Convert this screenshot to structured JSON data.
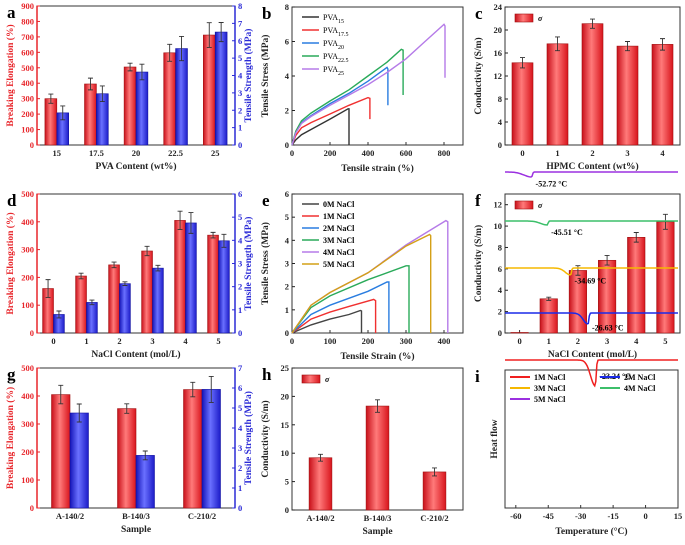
{
  "colors": {
    "red": "#e8262b",
    "blue": "#2b2bd6",
    "axis": "#333333"
  },
  "chart_data": [
    {
      "panel": "a",
      "type": "bar",
      "categories": [
        "15",
        "17.5",
        "20",
        "22.5",
        "25"
      ],
      "xlabel": "PVA Content (wt%)",
      "ylabel": "Breaking Elongation (%)",
      "ylabel_right": "Tensile Strength (MPa)",
      "ylim": [
        0,
        900
      ],
      "ylim_right": [
        0,
        8
      ],
      "yticks": [
        "0",
        "100",
        "200",
        "300",
        "400",
        "500",
        "600",
        "700",
        "800",
        "900"
      ],
      "yticks_right": [
        "0",
        "1",
        "2",
        "3",
        "4",
        "5",
        "6",
        "7",
        "8"
      ],
      "series": [
        {
          "axis": "left",
          "color": "#e8262b",
          "values": [
            300,
            395,
            505,
            597,
            712
          ],
          "errors": [
            30,
            38,
            25,
            55,
            80
          ]
        },
        {
          "axis": "right",
          "color": "#2b2bd6",
          "values": [
            1.85,
            2.95,
            4.2,
            5.55,
            6.5
          ],
          "errors": [
            0.4,
            0.45,
            0.45,
            0.7,
            0.55
          ]
        }
      ]
    },
    {
      "panel": "b",
      "type": "line",
      "xlabel": "Tensile strain (%)",
      "ylabel": "Tensile Stress (MPa)",
      "xlim": [
        0,
        900
      ],
      "ylim": [
        0,
        8
      ],
      "xticks": [
        "0",
        "200",
        "400",
        "600",
        "800"
      ],
      "yticks": [
        "0",
        "2",
        "4",
        "6",
        "8"
      ],
      "legend": "top-left",
      "series": [
        {
          "name": "PVA",
          "sub": "15",
          "color": "#333333",
          "points": [
            [
              0,
              0
            ],
            [
              20,
              0.3
            ],
            [
              50,
              0.6
            ],
            [
              100,
              0.9
            ],
            [
              200,
              1.5
            ],
            [
              295,
              2.1
            ],
            [
              300,
              2.1
            ],
            [
              300,
              0
            ]
          ]
        },
        {
          "name": "PVA",
          "sub": "17.5",
          "color": "#f03030",
          "points": [
            [
              0,
              0
            ],
            [
              20,
              0.55
            ],
            [
              50,
              1.0
            ],
            [
              100,
              1.3
            ],
            [
              200,
              1.8
            ],
            [
              300,
              2.3
            ],
            [
              400,
              2.75
            ],
            [
              410,
              2.7
            ],
            [
              410,
              1.5
            ]
          ]
        },
        {
          "name": "PVA",
          "sub": "20",
          "color": "#2a7de0",
          "points": [
            [
              0,
              0
            ],
            [
              20,
              0.75
            ],
            [
              50,
              1.3
            ],
            [
              100,
              1.7
            ],
            [
              200,
              2.4
            ],
            [
              300,
              3.0
            ],
            [
              400,
              3.7
            ],
            [
              500,
              4.5
            ],
            [
              505,
              4.4
            ],
            [
              505,
              2.3
            ]
          ]
        },
        {
          "name": "PVA",
          "sub": "22.5",
          "color": "#2aaa5a",
          "points": [
            [
              0,
              0
            ],
            [
              20,
              0.8
            ],
            [
              50,
              1.4
            ],
            [
              100,
              1.85
            ],
            [
              200,
              2.55
            ],
            [
              300,
              3.2
            ],
            [
              400,
              4.0
            ],
            [
              500,
              4.8
            ],
            [
              575,
              5.55
            ],
            [
              585,
              5.5
            ],
            [
              585,
              2.9
            ]
          ]
        },
        {
          "name": "PVA",
          "sub": "25",
          "color": "#b57be8",
          "points": [
            [
              0,
              0
            ],
            [
              20,
              0.7
            ],
            [
              50,
              1.25
            ],
            [
              100,
              1.65
            ],
            [
              200,
              2.3
            ],
            [
              300,
              2.9
            ],
            [
              400,
              3.5
            ],
            [
              500,
              4.2
            ],
            [
              600,
              5.0
            ],
            [
              700,
              6.0
            ],
            [
              800,
              7.0
            ],
            [
              805,
              6.9
            ],
            [
              805,
              3.9
            ]
          ]
        }
      ]
    },
    {
      "panel": "c",
      "type": "bar",
      "categories": [
        "0",
        "1",
        "2",
        "3",
        "4"
      ],
      "xlabel": "HPMC Content (wt%)",
      "ylabel": "Conductivity (S/m)",
      "ylim": [
        0,
        24
      ],
      "yticks": [
        "0",
        "4",
        "8",
        "12",
        "16",
        "20",
        "24"
      ],
      "legend": "top-left",
      "series": [
        {
          "name": "σ",
          "axis": "left",
          "color": "#e8262b",
          "values": [
            14.3,
            17.6,
            21.1,
            17.2,
            17.5
          ],
          "errors": [
            0.9,
            1.2,
            0.8,
            0.8,
            1.0
          ]
        }
      ]
    },
    {
      "panel": "d",
      "type": "bar",
      "categories": [
        "0",
        "1",
        "2",
        "3",
        "4",
        "5"
      ],
      "xlabel": "NaCl Content (mol/L)",
      "ylabel": "Breaking Elongation (%)",
      "ylabel_right": "Tensile Strength (MPa)",
      "ylim": [
        0,
        500
      ],
      "ylim_right": [
        0,
        6
      ],
      "yticks": [
        "0",
        "100",
        "200",
        "300",
        "400",
        "500"
      ],
      "yticks_right": [
        "0",
        "1",
        "2",
        "3",
        "4",
        "5",
        "6"
      ],
      "series": [
        {
          "axis": "left",
          "color": "#e8262b",
          "values": [
            160,
            205,
            245,
            295,
            405,
            352
          ],
          "errors": [
            32,
            10,
            10,
            17,
            33,
            10
          ]
        },
        {
          "axis": "right",
          "color": "#2b2bd6",
          "values": [
            0.8,
            1.32,
            2.13,
            2.8,
            4.75,
            3.98
          ],
          "errors": [
            0.15,
            0.1,
            0.08,
            0.12,
            0.45,
            0.28
          ]
        }
      ]
    },
    {
      "panel": "e",
      "type": "line",
      "xlabel": "Tensile Strain (%)",
      "ylabel": "Tensile Stress (MPa)",
      "xlim": [
        0,
        450
      ],
      "ylim": [
        0,
        6
      ],
      "xticks": [
        "0",
        "100",
        "200",
        "300",
        "400"
      ],
      "yticks": [
        "0",
        "1",
        "2",
        "3",
        "4",
        "5",
        "6"
      ],
      "legend": "top-left",
      "series": [
        {
          "name": "0M NaCl",
          "color": "#444444",
          "points": [
            [
              0,
              0
            ],
            [
              50,
              0.35
            ],
            [
              100,
              0.6
            ],
            [
              150,
              0.8
            ],
            [
              180,
              0.97
            ],
            [
              183,
              0.95
            ],
            [
              183,
              0
            ]
          ]
        },
        {
          "name": "1M NaCl",
          "color": "#f03030",
          "points": [
            [
              0,
              0
            ],
            [
              50,
              0.6
            ],
            [
              100,
              0.9
            ],
            [
              150,
              1.15
            ],
            [
              215,
              1.45
            ],
            [
              220,
              1.4
            ],
            [
              220,
              0
            ]
          ]
        },
        {
          "name": "2M NaCl",
          "color": "#2a7de0",
          "points": [
            [
              0,
              0
            ],
            [
              50,
              0.8
            ],
            [
              100,
              1.2
            ],
            [
              200,
              1.8
            ],
            [
              250,
              2.2
            ],
            [
              255,
              2.2
            ],
            [
              255,
              0
            ]
          ]
        },
        {
          "name": "3M NaCl",
          "color": "#2aaa5a",
          "points": [
            [
              0,
              0
            ],
            [
              50,
              1.1
            ],
            [
              100,
              1.6
            ],
            [
              200,
              2.3
            ],
            [
              300,
              2.9
            ],
            [
              308,
              2.9
            ],
            [
              308,
              0
            ]
          ]
        },
        {
          "name": "4M NaCl",
          "color": "#b57be8",
          "points": [
            [
              0,
              0
            ],
            [
              50,
              1.2
            ],
            [
              100,
              1.75
            ],
            [
              200,
              2.6
            ],
            [
              300,
              3.8
            ],
            [
              405,
              4.85
            ],
            [
              410,
              4.8
            ],
            [
              410,
              0
            ]
          ]
        },
        {
          "name": "5M NaCl",
          "color": "#d4a017",
          "points": [
            [
              0,
              0
            ],
            [
              50,
              1.2
            ],
            [
              100,
              1.75
            ],
            [
              200,
              2.6
            ],
            [
              300,
              3.75
            ],
            [
              362,
              4.25
            ],
            [
              365,
              4.2
            ],
            [
              365,
              0
            ]
          ]
        }
      ]
    },
    {
      "panel": "f",
      "type": "bar",
      "categories": [
        "0",
        "1",
        "2",
        "3",
        "4",
        "5"
      ],
      "xlabel": "NaCl Content (mol/L)",
      "ylabel": "Conductivity (S/m)",
      "ylim": [
        0,
        13
      ],
      "yticks": [
        "0",
        "2",
        "4",
        "6",
        "8",
        "10",
        "12"
      ],
      "legend": "top-left",
      "series": [
        {
          "name": "σ",
          "axis": "left",
          "color": "#e8262b",
          "values": [
            0.05,
            3.2,
            5.85,
            6.8,
            8.95,
            10.4
          ],
          "errors": [
            0,
            0.15,
            0.45,
            0.45,
            0.45,
            0.7
          ]
        }
      ]
    },
    {
      "panel": "g",
      "type": "bar",
      "categories": [
        "A-140/2",
        "B-140/3",
        "C-210/2"
      ],
      "xlabel": "Sample",
      "ylabel": "Breaking Elongation (%)",
      "ylabel_right": "Tensile Strength (MPa)",
      "ylim": [
        0,
        500
      ],
      "ylim_right": [
        0,
        7
      ],
      "yticks": [
        "0",
        "100",
        "200",
        "300",
        "400",
        "500"
      ],
      "yticks_right": [
        "0",
        "1",
        "2",
        "3",
        "4",
        "5",
        "6",
        "7"
      ],
      "series": [
        {
          "axis": "left",
          "color": "#e8262b",
          "values": [
            405,
            355,
            423
          ],
          "errors": [
            33,
            17,
            26
          ]
        },
        {
          "axis": "right",
          "color": "#2b2bd6",
          "values": [
            4.75,
            2.63,
            5.93
          ],
          "errors": [
            0.45,
            0.22,
            0.65
          ]
        }
      ]
    },
    {
      "panel": "h",
      "type": "bar",
      "categories": [
        "A-140/2",
        "B-140/3",
        "C-210/2"
      ],
      "xlabel": "Sample",
      "ylabel": "Conductivity (S/m)",
      "ylim": [
        0,
        25
      ],
      "yticks": [
        "0",
        "5",
        "10",
        "15",
        "20",
        "25"
      ],
      "legend": "top-left",
      "series": [
        {
          "name": "σ",
          "axis": "left",
          "color": "#e8262b",
          "values": [
            9.2,
            18.3,
            6.7
          ],
          "errors": [
            0.6,
            1.1,
            0.7
          ]
        }
      ]
    },
    {
      "panel": "i",
      "type": "line",
      "xlabel": "Temperature (°C)",
      "ylabel": "Heat flow",
      "xlim": [
        -65,
        15
      ],
      "xticks": [
        "-60",
        "-45",
        "-30",
        "-15",
        "0",
        "15"
      ],
      "legend": "top",
      "series": [
        {
          "name": "1M NaCl",
          "color": "#f02020",
          "peak": -23.24,
          "peak_label": "-23.24 °C"
        },
        {
          "name": "2M NaCl",
          "color": "#1a2ae8",
          "peak": -26.63,
          "peak_label": "-26.63 °C"
        },
        {
          "name": "3M NaCl",
          "color": "#f5b800",
          "peak": -34.69,
          "peak_label": "-34.69 °C"
        },
        {
          "name": "4M NaCl",
          "color": "#3cbf6a",
          "peak": -45.51,
          "peak_label": "-45.51 °C"
        },
        {
          "name": "5M NaCl",
          "color": "#9b30e0",
          "peak": -52.72,
          "peak_label": "-52.72 °C"
        }
      ]
    }
  ]
}
